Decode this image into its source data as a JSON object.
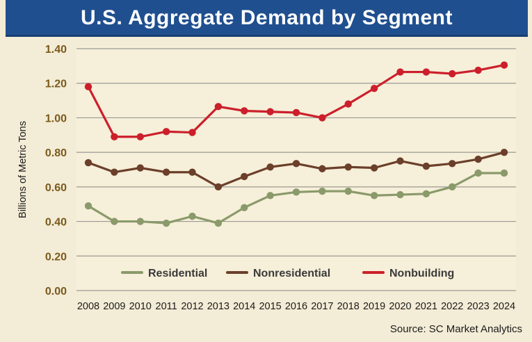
{
  "chart_data": {
    "type": "line",
    "title": "U.S. Aggregate Demand by Segment",
    "ylabel": "Billions of Metric Tons",
    "xlabel": "",
    "ylim": [
      0,
      1.4
    ],
    "yticks": [
      "0.00",
      "0.20",
      "0.40",
      "0.60",
      "0.80",
      "1.00",
      "1.20",
      "1.40"
    ],
    "grid": true,
    "legend_position": "bottom-inside",
    "categories": [
      "2008",
      "2009",
      "2010",
      "2011",
      "2012",
      "2013",
      "2014",
      "2015",
      "2016",
      "2017",
      "2018",
      "2019",
      "2020",
      "2021",
      "2022",
      "2023",
      "2024"
    ],
    "series": [
      {
        "name": "Residential",
        "color": "#8a9a6a",
        "values": [
          0.49,
          0.4,
          0.4,
          0.39,
          0.43,
          0.39,
          0.48,
          0.55,
          0.57,
          0.575,
          0.575,
          0.55,
          0.555,
          0.56,
          0.6,
          0.68,
          0.68
        ]
      },
      {
        "name": "Nonresidential",
        "color": "#6b3f2a",
        "values": [
          0.74,
          0.685,
          0.71,
          0.685,
          0.685,
          0.6,
          0.66,
          0.715,
          0.735,
          0.705,
          0.715,
          0.71,
          0.75,
          0.72,
          0.735,
          0.76,
          0.8
        ]
      },
      {
        "name": "Nonbuilding",
        "color": "#cc1f2b",
        "values": [
          1.18,
          0.89,
          0.89,
          0.92,
          0.915,
          1.065,
          1.04,
          1.035,
          1.03,
          1.0,
          1.08,
          1.17,
          1.265,
          1.265,
          1.255,
          1.275,
          1.305
        ]
      }
    ]
  },
  "source_text": "Source: SC Market Analytics"
}
